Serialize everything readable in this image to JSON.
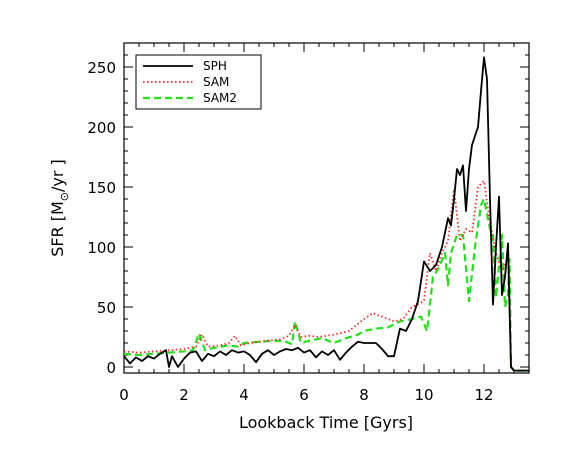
{
  "chart_data": {
    "type": "line",
    "title": "",
    "xlabel": "Lookback Time [Gyrs]",
    "ylabel_main": "SFR [M",
    "ylabel_sun": "⊙",
    "ylabel_unit": "/yr ]",
    "xlim": [
      0,
      13.5
    ],
    "ylim": [
      -5,
      270
    ],
    "x_ticks": [
      0,
      2,
      4,
      6,
      8,
      10,
      12
    ],
    "y_ticks": [
      0,
      50,
      100,
      150,
      200,
      250
    ],
    "grid": false,
    "legend_position": "top-left",
    "series": [
      {
        "name": "SPH",
        "color": "#000000",
        "style": "solid",
        "points": [
          [
            0,
            9
          ],
          [
            0.2,
            3
          ],
          [
            0.4,
            8
          ],
          [
            0.6,
            5
          ],
          [
            0.8,
            9
          ],
          [
            1.0,
            7
          ],
          [
            1.2,
            11
          ],
          [
            1.4,
            14
          ],
          [
            1.5,
            0
          ],
          [
            1.6,
            9
          ],
          [
            1.8,
            0
          ],
          [
            2.0,
            7
          ],
          [
            2.2,
            12
          ],
          [
            2.4,
            13
          ],
          [
            2.6,
            5
          ],
          [
            2.8,
            11
          ],
          [
            3.0,
            9
          ],
          [
            3.2,
            13
          ],
          [
            3.4,
            10
          ],
          [
            3.6,
            14
          ],
          [
            3.8,
            12
          ],
          [
            4.0,
            13
          ],
          [
            4.2,
            10
          ],
          [
            4.4,
            4
          ],
          [
            4.6,
            11
          ],
          [
            4.8,
            14
          ],
          [
            5.0,
            10
          ],
          [
            5.2,
            13
          ],
          [
            5.4,
            15
          ],
          [
            5.6,
            14
          ],
          [
            5.8,
            16
          ],
          [
            6.0,
            12
          ],
          [
            6.2,
            14
          ],
          [
            6.4,
            8
          ],
          [
            6.6,
            13
          ],
          [
            6.8,
            10
          ],
          [
            7.0,
            14
          ],
          [
            7.2,
            6
          ],
          [
            7.4,
            12
          ],
          [
            7.6,
            17
          ],
          [
            7.8,
            21
          ],
          [
            8.0,
            20
          ],
          [
            8.2,
            20
          ],
          [
            8.4,
            20
          ],
          [
            8.6,
            15
          ],
          [
            8.8,
            9
          ],
          [
            9.0,
            9
          ],
          [
            9.2,
            32
          ],
          [
            9.4,
            30
          ],
          [
            9.6,
            40
          ],
          [
            9.8,
            55
          ],
          [
            10.0,
            88
          ],
          [
            10.2,
            80
          ],
          [
            10.4,
            85
          ],
          [
            10.6,
            100
          ],
          [
            10.8,
            124
          ],
          [
            10.9,
            118
          ],
          [
            11.0,
            140
          ],
          [
            11.1,
            165
          ],
          [
            11.2,
            160
          ],
          [
            11.3,
            168
          ],
          [
            11.4,
            130
          ],
          [
            11.5,
            165
          ],
          [
            11.6,
            185
          ],
          [
            11.8,
            200
          ],
          [
            11.9,
            230
          ],
          [
            12.0,
            258
          ],
          [
            12.1,
            240
          ],
          [
            12.2,
            140
          ],
          [
            12.3,
            52
          ],
          [
            12.4,
            100
          ],
          [
            12.5,
            142
          ],
          [
            12.6,
            60
          ],
          [
            12.7,
            75
          ],
          [
            12.8,
            103
          ],
          [
            12.9,
            0
          ],
          [
            13.0,
            -3
          ],
          [
            13.5,
            -3
          ]
        ]
      },
      {
        "name": "SAM",
        "color": "#e8312a",
        "style": "dotted",
        "points": [
          [
            0,
            13
          ],
          [
            0.5,
            12
          ],
          [
            1.0,
            13
          ],
          [
            1.5,
            14
          ],
          [
            2.0,
            15
          ],
          [
            2.4,
            17
          ],
          [
            2.6,
            27
          ],
          [
            2.8,
            17
          ],
          [
            3.2,
            18
          ],
          [
            3.5,
            20
          ],
          [
            3.7,
            26
          ],
          [
            3.9,
            18
          ],
          [
            4.2,
            20
          ],
          [
            4.8,
            22
          ],
          [
            5.2,
            23
          ],
          [
            5.5,
            26
          ],
          [
            5.7,
            35
          ],
          [
            5.9,
            25
          ],
          [
            6.2,
            26
          ],
          [
            6.5,
            25
          ],
          [
            7.0,
            27
          ],
          [
            7.5,
            30
          ],
          [
            8.0,
            40
          ],
          [
            8.3,
            45
          ],
          [
            8.6,
            42
          ],
          [
            9.0,
            38
          ],
          [
            9.3,
            40
          ],
          [
            9.6,
            50
          ],
          [
            10.0,
            55
          ],
          [
            10.2,
            95
          ],
          [
            10.4,
            80
          ],
          [
            10.6,
            95
          ],
          [
            10.8,
            105
          ],
          [
            11.0,
            148
          ],
          [
            11.2,
            105
          ],
          [
            11.4,
            115
          ],
          [
            11.6,
            112
          ],
          [
            11.8,
            150
          ],
          [
            12.0,
            155
          ],
          [
            12.2,
            120
          ],
          [
            12.4,
            95
          ],
          [
            12.6,
            80
          ],
          [
            12.8,
            90
          ],
          [
            12.9,
            0
          ],
          [
            13.0,
            -3
          ],
          [
            13.5,
            -3
          ]
        ]
      },
      {
        "name": "SAM2",
        "color": "#22e01a",
        "style": "dashed",
        "points": [
          [
            0,
            11
          ],
          [
            0.5,
            10
          ],
          [
            1.0,
            11
          ],
          [
            1.5,
            12
          ],
          [
            2.0,
            13
          ],
          [
            2.3,
            14
          ],
          [
            2.5,
            28
          ],
          [
            2.7,
            14
          ],
          [
            3.0,
            16
          ],
          [
            3.5,
            18
          ],
          [
            3.8,
            17
          ],
          [
            4.0,
            20
          ],
          [
            4.5,
            21
          ],
          [
            5.0,
            22
          ],
          [
            5.4,
            21
          ],
          [
            5.6,
            19
          ],
          [
            5.7,
            38
          ],
          [
            5.9,
            20
          ],
          [
            6.2,
            22
          ],
          [
            6.6,
            24
          ],
          [
            7.0,
            20
          ],
          [
            7.4,
            24
          ],
          [
            7.8,
            27
          ],
          [
            8.0,
            30
          ],
          [
            8.4,
            32
          ],
          [
            8.8,
            33
          ],
          [
            9.2,
            38
          ],
          [
            9.6,
            40
          ],
          [
            9.9,
            42
          ],
          [
            10.1,
            30
          ],
          [
            10.3,
            75
          ],
          [
            10.5,
            83
          ],
          [
            10.7,
            95
          ],
          [
            10.8,
            68
          ],
          [
            10.9,
            95
          ],
          [
            11.1,
            110
          ],
          [
            11.3,
            110
          ],
          [
            11.5,
            55
          ],
          [
            11.7,
            100
          ],
          [
            11.9,
            135
          ],
          [
            12.0,
            140
          ],
          [
            12.2,
            115
          ],
          [
            12.3,
            110
          ],
          [
            12.4,
            58
          ],
          [
            12.6,
            110
          ],
          [
            12.7,
            50
          ],
          [
            12.8,
            60
          ],
          [
            12.85,
            90
          ],
          [
            12.9,
            0
          ],
          [
            13.0,
            -3
          ],
          [
            13.5,
            -3
          ]
        ]
      }
    ]
  }
}
